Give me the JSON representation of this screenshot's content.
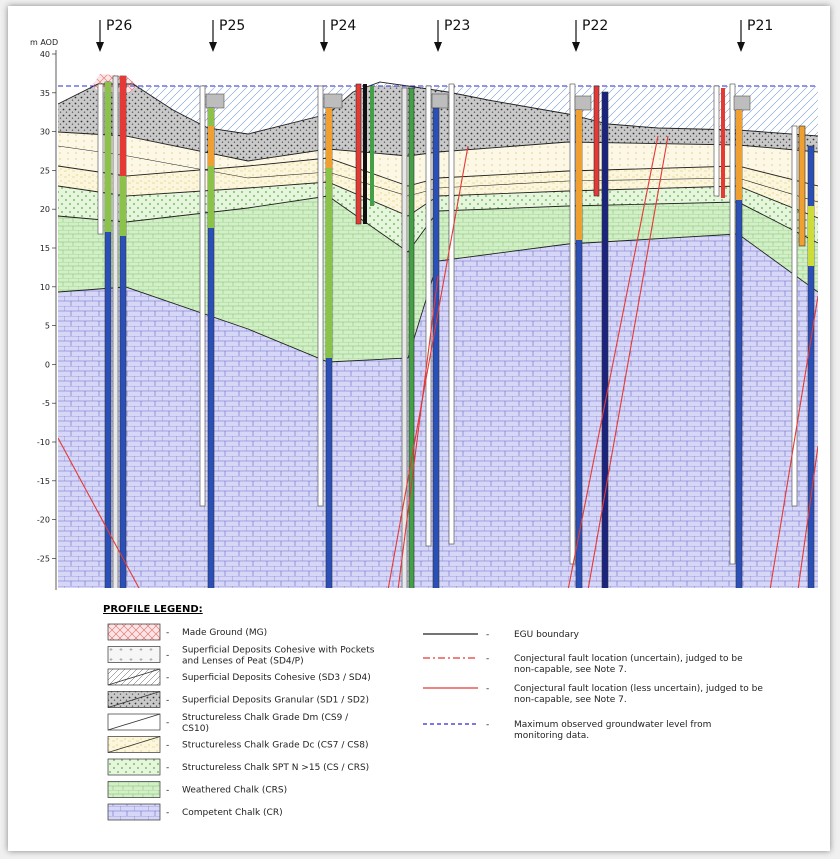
{
  "axis": {
    "unit_label": "m AOD",
    "ticks": [
      "40",
      "35",
      "30",
      "25",
      "20",
      "15",
      "10",
      "5",
      "0",
      "-5",
      "-10",
      "-15",
      "-20",
      "-25"
    ]
  },
  "profiles": [
    "P26",
    "P25",
    "P24",
    "P23",
    "P22",
    "P21"
  ],
  "legend": {
    "title": "PROFILE LEGEND:",
    "dash": "-",
    "left": [
      {
        "label": "Made Ground (MG)"
      },
      {
        "label_line1": "Superficial Deposits Cohesive with Pockets",
        "label_line2": "and Lenses of Peat (SD4/P)"
      },
      {
        "label": "Superficial Deposits Cohesive (SD3 / SD4)"
      },
      {
        "label": "Superficial Deposits Granular (SD1 / SD2)"
      },
      {
        "label_line1": "Structureless Chalk Grade Dm (CS9 /",
        "label_line2": "CS10)"
      },
      {
        "label": "Structureless Chalk Grade Dc (CS7 / CS8)"
      },
      {
        "label": "Structureless Chalk SPT N >15 (CS / CRS)"
      },
      {
        "label": "Weathered Chalk (CRS)"
      },
      {
        "label": "Competent Chalk (CR)"
      }
    ],
    "right": [
      {
        "label": "EGU boundary"
      },
      {
        "label_line1": "Conjectural fault location (uncertain), judged to be",
        "label_line2": "non-capable, see Note 7."
      },
      {
        "label_line1": "Conjectural fault location (less uncertain), judged to be",
        "label_line2": "non-capable, see Note 7."
      },
      {
        "label_line1": "Maximum observed groundwater level from",
        "label_line2": "monitoring data."
      }
    ]
  }
}
